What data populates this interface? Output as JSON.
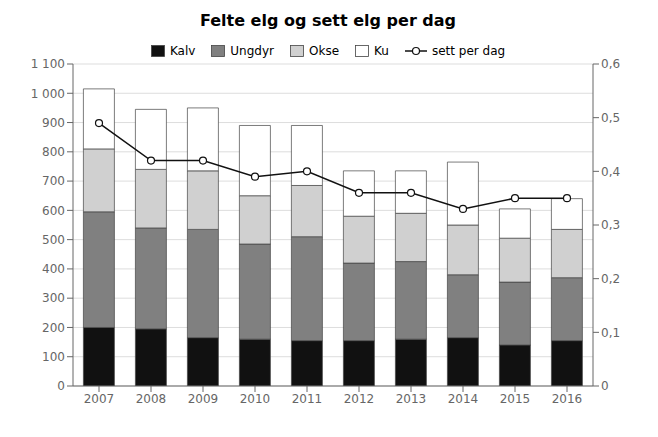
{
  "chart_data": {
    "type": "bar",
    "title": "Felte elg og sett elg per dag",
    "stacked": true,
    "grid": true,
    "legend": "top",
    "categories": [
      "2007",
      "2008",
      "2009",
      "2010",
      "2011",
      "2012",
      "2013",
      "2014",
      "2015",
      "2016"
    ],
    "series": [
      {
        "name": "Kalv",
        "color": "#111111",
        "values": [
          200,
          195,
          165,
          160,
          155,
          155,
          160,
          165,
          140,
          155
        ]
      },
      {
        "name": "Ungdyr",
        "color": "#808080",
        "values": [
          395,
          345,
          370,
          325,
          355,
          265,
          265,
          215,
          215,
          215
        ]
      },
      {
        "name": "Okse",
        "color": "#d0d0d0",
        "values": [
          215,
          200,
          200,
          165,
          175,
          160,
          165,
          170,
          150,
          165
        ]
      },
      {
        "name": "Ku",
        "color": "#ffffff",
        "values": [
          205,
          205,
          215,
          240,
          205,
          155,
          145,
          215,
          100,
          105
        ]
      },
      {
        "name": "sett per dag",
        "type": "line",
        "axis": "y2",
        "color": "#111111",
        "marker": "circle",
        "values": [
          0.49,
          0.42,
          0.42,
          0.39,
          0.4,
          0.36,
          0.36,
          0.33,
          0.35,
          0.35
        ]
      }
    ],
    "ylim": [
      0,
      1100
    ],
    "yticks": [
      0,
      100,
      200,
      300,
      400,
      500,
      600,
      700,
      800,
      900,
      {
        "value": 1000,
        "label": "1 000"
      },
      {
        "value": 1100,
        "label": "1 100"
      }
    ],
    "y2lim": [
      0,
      0.6
    ],
    "y2ticks": [
      0,
      {
        "value": 0.1,
        "label": "0,1"
      },
      {
        "value": 0.2,
        "label": "0,2"
      },
      {
        "value": 0.3,
        "label": "0,3"
      },
      {
        "value": 0.4,
        "label": "0,4"
      },
      {
        "value": 0.5,
        "label": "0,5"
      },
      {
        "value": 0.6,
        "label": "0,6"
      }
    ]
  }
}
